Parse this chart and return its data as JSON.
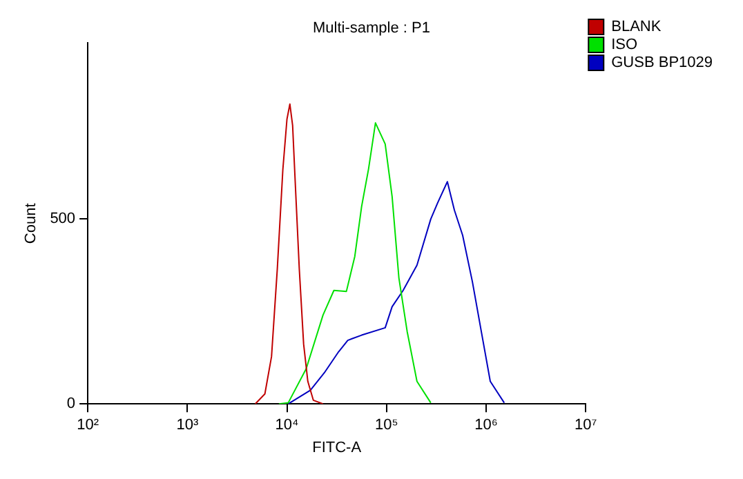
{
  "chart_data": {
    "type": "line",
    "title": "Multi-sample : P1",
    "xlabel": "FITC-A",
    "ylabel": "Count",
    "log": "x",
    "xlim": [
      100,
      10000000
    ],
    "xticks": [
      {
        "value": 100,
        "label": "10²"
      },
      {
        "value": 1000,
        "label": "10³"
      },
      {
        "value": 10000,
        "label": "10⁴"
      },
      {
        "value": 100000,
        "label": "10⁵"
      },
      {
        "value": 1000000,
        "label": "10⁶"
      },
      {
        "value": 10000000,
        "label": "10⁷"
      }
    ],
    "ylim": [
      0,
      976
    ],
    "yticks": [
      0,
      500
    ],
    "grid": false,
    "legend": "top right",
    "marker": "none",
    "line_style": "solid",
    "series": [
      {
        "name": "BLANK",
        "color": "#c00000",
        "x": [
          4800,
          6000,
          7000,
          8000,
          9100,
          10000,
          10700,
          11400,
          12100,
          13300,
          14700,
          16200,
          18400,
          23000
        ],
        "values": [
          0,
          27,
          128,
          365,
          635,
          770,
          811,
          753,
          601,
          365,
          162,
          61,
          10,
          0
        ]
      },
      {
        "name": "ISO",
        "color": "#00e000",
        "x": [
          8300,
          10300,
          15600,
          23000,
          29600,
          39500,
          48000,
          56200,
          65900,
          77400,
          96900,
          113700,
          133000,
          161000,
          202000,
          278000
        ],
        "values": [
          0,
          3,
          95,
          240,
          307,
          304,
          399,
          534,
          635,
          760,
          703,
          561,
          341,
          196,
          61,
          3
        ]
      },
      {
        "name": "GUSB BP1029",
        "color": "#0000c0",
        "x": [
          10300,
          17200,
          23700,
          32600,
          40800,
          56200,
          96900,
          113700,
          146700,
          202000,
          278000,
          326000,
          408000,
          480000,
          581000,
          727000,
          908000,
          1100000,
          1520000
        ],
        "values": [
          0,
          37,
          84,
          139,
          172,
          186,
          206,
          263,
          307,
          375,
          500,
          544,
          601,
          524,
          456,
          331,
          186,
          61,
          3
        ]
      }
    ]
  }
}
